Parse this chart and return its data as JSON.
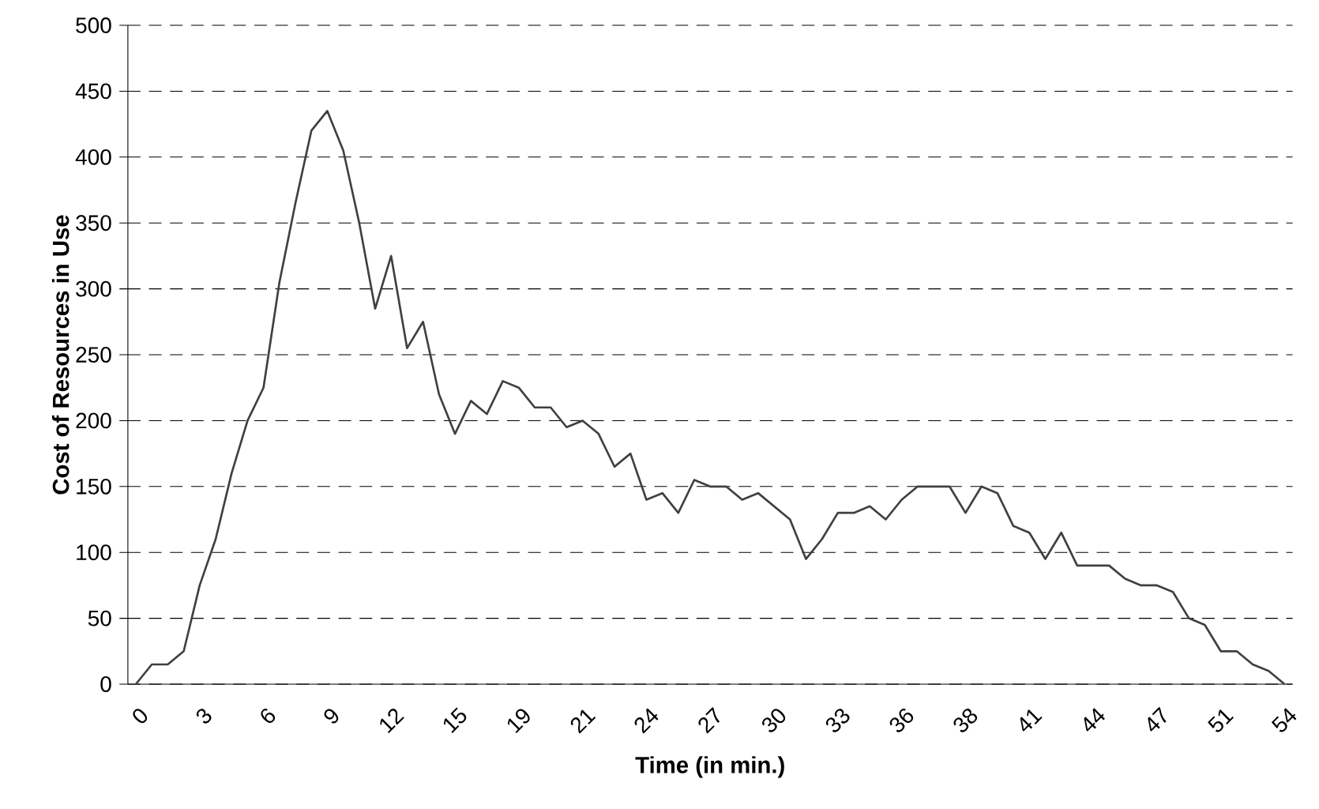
{
  "chart_data": {
    "type": "line",
    "xlabel": "Time (in min.)",
    "ylabel": "Cost of Resources in Use",
    "categories": [
      "0",
      null,
      null,
      null,
      "3",
      null,
      null,
      null,
      "6",
      null,
      null,
      null,
      "9",
      null,
      null,
      null,
      "12",
      null,
      null,
      null,
      "15",
      null,
      null,
      null,
      "19",
      null,
      null,
      null,
      "21",
      null,
      null,
      null,
      "24",
      null,
      null,
      null,
      "27",
      null,
      null,
      null,
      "30",
      null,
      null,
      null,
      "33",
      null,
      null,
      null,
      "36",
      null,
      null,
      null,
      "38",
      null,
      null,
      null,
      "41",
      null,
      null,
      null,
      "44",
      null,
      null,
      null,
      "47",
      null,
      null,
      null,
      "51",
      null,
      null,
      null,
      "54"
    ],
    "values": [
      0,
      15,
      15,
      25,
      75,
      110,
      160,
      200,
      225,
      305,
      365,
      420,
      435,
      405,
      350,
      285,
      325,
      255,
      275,
      220,
      190,
      215,
      205,
      230,
      225,
      210,
      210,
      195,
      200,
      190,
      165,
      175,
      140,
      145,
      130,
      155,
      150,
      150,
      140,
      145,
      135,
      125,
      95,
      110,
      130,
      130,
      135,
      125,
      140,
      150,
      150,
      150,
      130,
      150,
      145,
      120,
      115,
      95,
      115,
      90,
      90,
      90,
      80,
      75,
      75,
      70,
      50,
      45,
      25,
      25,
      15,
      10,
      0
    ],
    "color": "#404040",
    "ylim": [
      0,
      500
    ],
    "yticks": [
      0,
      50,
      100,
      150,
      200,
      250,
      300,
      350,
      400,
      450,
      500
    ],
    "grid": "y"
  }
}
